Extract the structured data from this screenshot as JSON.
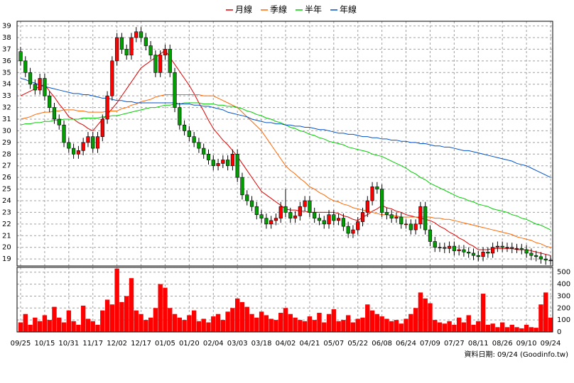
{
  "chart_data": {
    "type": "candlestick",
    "categories": [
      "09/25",
      null,
      null,
      null,
      null,
      "10/15",
      null,
      null,
      null,
      null,
      "10/31",
      null,
      null,
      null,
      null,
      "11/17",
      null,
      null,
      null,
      null,
      "12/02",
      null,
      null,
      null,
      null,
      "12/17",
      null,
      null,
      null,
      null,
      "01/05",
      null,
      null,
      null,
      null,
      "01/20",
      null,
      null,
      null,
      null,
      "02/04",
      null,
      null,
      null,
      null,
      "03/03",
      null,
      null,
      null,
      null,
      "03/18",
      null,
      null,
      null,
      null,
      "04/02",
      null,
      null,
      null,
      null,
      "04/21",
      null,
      null,
      null,
      null,
      "05/07",
      null,
      null,
      null,
      null,
      "05/22",
      null,
      null,
      null,
      null,
      "06/08",
      null,
      null,
      null,
      null,
      "06/24",
      null,
      null,
      null,
      null,
      "07/09",
      null,
      null,
      null,
      null,
      "07/27",
      null,
      null,
      null,
      null,
      "08/11",
      null,
      null,
      null,
      null,
      "08/26",
      null,
      null,
      null,
      null,
      "09/10",
      null,
      null,
      null,
      null,
      "09/24"
    ],
    "open": [
      36.8,
      36,
      35,
      34,
      33.5,
      34.5,
      33,
      32,
      31,
      30.5,
      29,
      28.5,
      28,
      28.3,
      29,
      29.5,
      28.5,
      29.5,
      31,
      33,
      36,
      38,
      37,
      36.5,
      38,
      38.5,
      38,
      37.3,
      36.5,
      35,
      36.5,
      37,
      35,
      32,
      30.5,
      30,
      29.5,
      29,
      28.5,
      28,
      27.5,
      27,
      27.2,
      27.5,
      27,
      28,
      26,
      24.5,
      24,
      23.5,
      22.8,
      22.5,
      22,
      22.3,
      22.5,
      23.5,
      23,
      22.5,
      22.7,
      23.5,
      24,
      23,
      22.5,
      22.3,
      22,
      22.8,
      22.3,
      22.5,
      21.8,
      21.2,
      21.5,
      22.2,
      23,
      24,
      25.2,
      25,
      23,
      22.8,
      22.5,
      22.6,
      22,
      22,
      21.5,
      22,
      23.5,
      21.5,
      20.5,
      20,
      20,
      19.9,
      20.1,
      19.7,
      19.8,
      19.6,
      19.5,
      19.3,
      19.2,
      19.6,
      19.5,
      20,
      20.1,
      20,
      20,
      19.9,
      19.9,
      19.8,
      19.5,
      19.3,
      19.2,
      19,
      18.9
    ],
    "high": [
      37.2,
      36.4,
      35.4,
      34.4,
      34.9,
      34.9,
      33.4,
      32.4,
      31.4,
      30.9,
      29.4,
      28.9,
      28.7,
      29.4,
      29.9,
      29.9,
      29.9,
      31.4,
      33.4,
      36.4,
      38.4,
      38.4,
      37.4,
      38.4,
      38.9,
      38.9,
      38.4,
      37.7,
      36.9,
      36.9,
      37.4,
      37.4,
      35.4,
      32.4,
      30.9,
      30.4,
      29.9,
      29.4,
      28.9,
      28.4,
      27.9,
      27.6,
      27.9,
      27.9,
      28.4,
      28.4,
      26.4,
      24.9,
      24.4,
      23.9,
      23.2,
      22.9,
      22.7,
      22.9,
      23.9,
      25,
      23.4,
      23.1,
      23.9,
      24.4,
      24.4,
      23.4,
      22.9,
      22.7,
      23.2,
      23.2,
      22.9,
      22.9,
      22.2,
      21.9,
      22.6,
      23.4,
      24.4,
      25.6,
      25.6,
      25.4,
      23.4,
      23.2,
      23,
      23,
      22.4,
      22.4,
      22.4,
      23.9,
      23.9,
      21.9,
      20.9,
      20.4,
      20.4,
      20.5,
      20.5,
      20.2,
      20.2,
      20,
      19.9,
      19.7,
      20,
      20,
      20.4,
      20.5,
      20.5,
      20.4,
      20.4,
      20.3,
      20.3,
      20.2,
      19.9,
      19.7,
      19.6,
      19.4,
      19.3
    ],
    "low": [
      35.6,
      34.6,
      33.6,
      33.1,
      33.1,
      32.6,
      31.6,
      30.6,
      30.1,
      28.6,
      28.1,
      27.6,
      27.6,
      27.9,
      28.6,
      28.1,
      28.1,
      29.1,
      30.6,
      32.6,
      35.6,
      36.6,
      36.1,
      36.1,
      37.6,
      37.6,
      36.9,
      36.1,
      34.6,
      34.6,
      36.1,
      34.6,
      31.6,
      30.1,
      29.6,
      29.1,
      28.6,
      28.1,
      27.6,
      27.1,
      26.6,
      26.6,
      26.8,
      26.6,
      26.6,
      25.6,
      24.1,
      23.6,
      23.1,
      22.4,
      22.1,
      21.6,
      21.6,
      21.9,
      22.1,
      22.6,
      22.1,
      22.1,
      22.3,
      23.1,
      22.6,
      22.1,
      21.9,
      21.6,
      21.6,
      21.9,
      21.9,
      21.4,
      20.8,
      20.8,
      21.1,
      21.8,
      22.6,
      23.6,
      24.6,
      22.6,
      22.4,
      22.1,
      22.1,
      21.6,
      21.6,
      21.1,
      21.1,
      21.6,
      21.1,
      20.1,
      19.6,
      19.6,
      19.5,
      19.5,
      19.3,
      19.3,
      19.2,
      19.1,
      18.9,
      18.8,
      18.8,
      19.1,
      19.1,
      19.6,
      19.6,
      19.6,
      19.5,
      19.5,
      19.4,
      19.1,
      18.9,
      18.8,
      18.6,
      18.5,
      18.5
    ],
    "close": [
      36,
      35,
      34,
      33.5,
      34.5,
      33,
      32,
      31,
      30.5,
      29,
      28.5,
      28,
      28.3,
      29,
      29.5,
      28.5,
      29.5,
      31,
      33,
      36,
      38,
      37,
      36.5,
      38,
      38.5,
      38,
      37.3,
      36.5,
      35,
      36.5,
      37,
      35,
      32,
      30.5,
      30,
      29.5,
      29,
      28.5,
      28,
      27.5,
      27,
      27.2,
      27.5,
      27,
      28,
      26,
      24.5,
      24,
      23.5,
      22.8,
      22.5,
      22,
      22.3,
      22.5,
      23.5,
      23,
      22.5,
      22.7,
      23.5,
      24,
      23,
      22.5,
      22.3,
      22,
      22.8,
      22.3,
      22.5,
      21.8,
      21.2,
      21.5,
      22.2,
      23,
      24,
      25.2,
      25,
      23,
      22.8,
      22.5,
      22.6,
      22,
      22,
      21.5,
      22,
      23.5,
      21.5,
      20.5,
      20,
      20,
      19.9,
      20.1,
      19.7,
      19.8,
      19.6,
      19.5,
      19.3,
      19.2,
      19.6,
      19.5,
      20,
      20.1,
      20,
      20,
      19.9,
      19.9,
      19.8,
      19.5,
      19.3,
      19.2,
      19,
      18.9,
      18.9
    ],
    "up_color": "#ff0000",
    "down_color": "#00a000",
    "series": [
      {
        "name": "月線",
        "color": "#e00000",
        "values": [
          33.0,
          33.2,
          33.4,
          33.6,
          33.8,
          34.0,
          33.4,
          32.9,
          32.3,
          31.8,
          31.2,
          31.0,
          30.7,
          30.5,
          30.2,
          30.0,
          30.5,
          31.0,
          31.4,
          31.9,
          32.4,
          33.0,
          33.6,
          34.2,
          34.8,
          35.4,
          35.7,
          36.0,
          36.3,
          36.6,
          36.9,
          36.3,
          35.7,
          35.1,
          34.5,
          33.9,
          33.2,
          32.4,
          31.7,
          30.9,
          30.2,
          29.7,
          29.2,
          28.8,
          28.3,
          27.8,
          27.2,
          26.6,
          26.0,
          25.4,
          24.8,
          24.5,
          24.2,
          23.9,
          23.6,
          23.3,
          23.2,
          23.2,
          23.1,
          23.1,
          23.0,
          23.0,
          23.0,
          23.0,
          23.0,
          23.0,
          22.9,
          22.7,
          22.6,
          22.4,
          22.3,
          22.6,
          22.8,
          23.1,
          23.3,
          23.6,
          23.4,
          23.3,
          23.1,
          23.0,
          22.8,
          22.7,
          22.6,
          22.5,
          22.4,
          22.3,
          22.1,
          21.8,
          21.6,
          21.3,
          21.1,
          20.8,
          20.6,
          20.3,
          20.1,
          19.8,
          19.8,
          19.8,
          19.9,
          19.9,
          19.9,
          19.9,
          19.9,
          19.8,
          19.8,
          19.8,
          19.7,
          19.6,
          19.5,
          19.4,
          19.3
        ]
      },
      {
        "name": "季線",
        "color": "#ff6600",
        "values": [
          31.0,
          31.1,
          31.2,
          31.4,
          31.5,
          31.6,
          31.6,
          31.7,
          31.7,
          31.8,
          31.8,
          31.8,
          31.7,
          31.7,
          31.6,
          31.6,
          31.6,
          31.6,
          31.7,
          31.7,
          31.7,
          31.9,
          32.0,
          32.2,
          32.3,
          32.5,
          32.6,
          32.7,
          32.9,
          33.0,
          33.1,
          33.1,
          33.1,
          33.1,
          33.1,
          33.1,
          33.1,
          33.1,
          33.0,
          33.0,
          33.0,
          32.8,
          32.6,
          32.4,
          32.2,
          32.0,
          31.6,
          31.2,
          30.8,
          30.4,
          30.0,
          29.4,
          28.8,
          28.2,
          27.6,
          27.0,
          26.6,
          26.3,
          25.9,
          25.6,
          25.2,
          25.0,
          24.7,
          24.5,
          24.2,
          24.0,
          23.9,
          23.7,
          23.6,
          23.4,
          23.3,
          23.2,
          23.1,
          23.0,
          22.9,
          22.8,
          22.8,
          22.7,
          22.7,
          22.6,
          22.6,
          22.6,
          22.6,
          22.6,
          22.6,
          22.6,
          22.5,
          22.5,
          22.4,
          22.4,
          22.3,
          22.2,
          22.1,
          22.0,
          21.9,
          21.8,
          21.7,
          21.6,
          21.5,
          21.4,
          21.3,
          21.2,
          21.1,
          20.9,
          20.8,
          20.7,
          20.6,
          20.4,
          20.3,
          20.1,
          20.0
        ]
      },
      {
        "name": "半年",
        "color": "#00cc00",
        "values": [
          30.5,
          30.6,
          30.6,
          30.7,
          30.7,
          30.8,
          30.8,
          30.9,
          30.9,
          31.0,
          31.0,
          31.0,
          31.0,
          31.1,
          31.1,
          31.1,
          31.1,
          31.2,
          31.2,
          31.3,
          31.3,
          31.4,
          31.5,
          31.6,
          31.7,
          31.8,
          31.9,
          32.0,
          32.0,
          32.1,
          32.2,
          32.2,
          32.3,
          32.3,
          32.4,
          32.4,
          32.4,
          32.4,
          32.3,
          32.3,
          32.3,
          32.2,
          32.2,
          32.1,
          32.1,
          32.0,
          31.9,
          31.7,
          31.6,
          31.4,
          31.3,
          31.1,
          31.0,
          30.8,
          30.7,
          30.5,
          30.3,
          30.2,
          30.0,
          29.9,
          29.7,
          29.6,
          29.4,
          29.3,
          29.1,
          29.0,
          28.9,
          28.8,
          28.6,
          28.5,
          28.4,
          28.3,
          28.2,
          28.0,
          27.9,
          27.8,
          27.6,
          27.4,
          27.2,
          27.0,
          26.8,
          26.5,
          26.3,
          26.0,
          25.8,
          25.5,
          25.3,
          25.1,
          24.9,
          24.7,
          24.5,
          24.3,
          24.2,
          24.0,
          23.9,
          23.7,
          23.6,
          23.5,
          23.3,
          23.2,
          23.1,
          23.0,
          22.8,
          22.7,
          22.5,
          22.4,
          22.2,
          22.0,
          21.9,
          21.7,
          21.5
        ]
      },
      {
        "name": "年線",
        "color": "#0050c8",
        "values": [
          34.5,
          34.4,
          34.2,
          34.1,
          33.9,
          33.8,
          33.7,
          33.6,
          33.5,
          33.4,
          33.3,
          33.2,
          33.2,
          33.1,
          33.1,
          33.0,
          32.9,
          32.8,
          32.8,
          32.7,
          32.6,
          32.6,
          32.5,
          32.5,
          32.4,
          32.4,
          32.4,
          32.4,
          32.4,
          32.4,
          32.4,
          32.4,
          32.4,
          32.3,
          32.3,
          32.3,
          32.2,
          32.2,
          32.1,
          32.1,
          32.0,
          31.9,
          31.8,
          31.6,
          31.5,
          31.4,
          31.3,
          31.2,
          31.0,
          30.9,
          30.8,
          30.7,
          30.7,
          30.6,
          30.6,
          30.5,
          30.5,
          30.4,
          30.4,
          30.3,
          30.3,
          30.2,
          30.1,
          30.1,
          30.0,
          29.9,
          29.8,
          29.8,
          29.7,
          29.7,
          29.6,
          29.5,
          29.5,
          29.4,
          29.4,
          29.3,
          29.3,
          29.2,
          29.2,
          29.1,
          29.1,
          29.0,
          29.0,
          28.9,
          28.9,
          28.8,
          28.7,
          28.7,
          28.6,
          28.6,
          28.5,
          28.4,
          28.3,
          28.3,
          28.2,
          28.1,
          28.0,
          27.9,
          27.8,
          27.7,
          27.6,
          27.5,
          27.4,
          27.2,
          27.1,
          27.0,
          26.8,
          26.6,
          26.4,
          26.2,
          26.0
        ]
      }
    ],
    "ylim": [
      18.4,
      39.4
    ],
    "yticks": [
      19,
      20,
      21,
      22,
      23,
      24,
      25,
      26,
      27,
      28,
      29,
      30,
      31,
      32,
      33,
      34,
      35,
      36,
      37,
      38,
      39
    ],
    "grid": true,
    "legend": "top",
    "volume": {
      "color": "#ff0000",
      "values": [
        80,
        150,
        60,
        120,
        90,
        140,
        100,
        210,
        120,
        80,
        180,
        90,
        60,
        220,
        110,
        90,
        60,
        180,
        270,
        230,
        530,
        250,
        300,
        450,
        180,
        150,
        100,
        120,
        200,
        400,
        370,
        200,
        150,
        120,
        100,
        140,
        180,
        90,
        110,
        80,
        130,
        150,
        100,
        170,
        200,
        280,
        250,
        210,
        150,
        120,
        170,
        140,
        110,
        100,
        160,
        200,
        150,
        120,
        100,
        90,
        130,
        100,
        160,
        80,
        150,
        190,
        90,
        100,
        140,
        80,
        110,
        120,
        230,
        180,
        150,
        130,
        110,
        90,
        100,
        70,
        110,
        150,
        200,
        330,
        280,
        240,
        100,
        80,
        70,
        90,
        60,
        120,
        80,
        140,
        60,
        90,
        320,
        60,
        70,
        40,
        80,
        40,
        60,
        40,
        30,
        60,
        40,
        35,
        230,
        330,
        120
      ],
      "ylim": [
        0,
        540
      ],
      "yticks": [
        0,
        100,
        200,
        300,
        400,
        500
      ]
    },
    "annotation": "資料日期: 09/24 (Goodinfo.tw)"
  }
}
